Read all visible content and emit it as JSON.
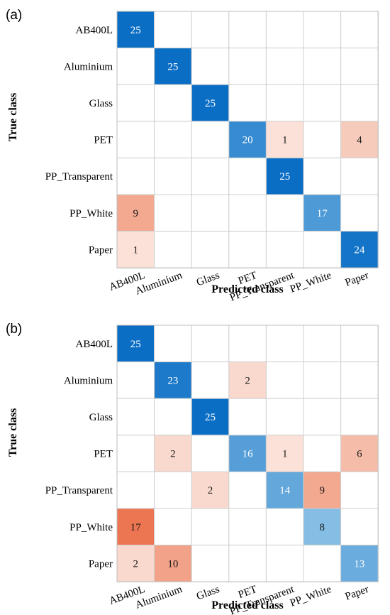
{
  "chart_data": [
    {
      "type": "heatmap",
      "panel_label": "(a)",
      "xlabel": "Predicted class",
      "ylabel": "True class",
      "row_labels": [
        "AB400L",
        "Aluminium",
        "Glass",
        "PET",
        "PP_Transparent",
        "PP_White",
        "Paper"
      ],
      "col_labels": [
        "AB400L",
        "Aluminium",
        "Glass",
        "PET",
        "PP_Transparent",
        "PP_White",
        "Paper"
      ],
      "matrix": [
        [
          25,
          0,
          0,
          0,
          0,
          0,
          0
        ],
        [
          0,
          25,
          0,
          0,
          0,
          0,
          0
        ],
        [
          0,
          0,
          25,
          0,
          0,
          0,
          0
        ],
        [
          0,
          0,
          0,
          20,
          1,
          0,
          4
        ],
        [
          0,
          0,
          0,
          0,
          25,
          0,
          0
        ],
        [
          9,
          0,
          0,
          0,
          0,
          17,
          0
        ],
        [
          1,
          0,
          0,
          0,
          0,
          0,
          24
        ]
      ],
      "grid": true,
      "colors": {
        "diagonal": "#0b6ec5",
        "off_diagonal": "#e8643a",
        "grid": "#cfcfcf"
      }
    },
    {
      "type": "heatmap",
      "panel_label": "(b)",
      "xlabel": "Predicted class",
      "ylabel": "True class",
      "row_labels": [
        "AB400L",
        "Aluminium",
        "Glass",
        "PET",
        "PP_Transparent",
        "PP_White",
        "Paper"
      ],
      "col_labels": [
        "AB400L",
        "Aluminium",
        "Glass",
        "PET",
        "PP_Transparent",
        "PP_White",
        "Paper"
      ],
      "matrix": [
        [
          25,
          0,
          0,
          0,
          0,
          0,
          0
        ],
        [
          0,
          23,
          0,
          2,
          0,
          0,
          0
        ],
        [
          0,
          0,
          25,
          0,
          0,
          0,
          0
        ],
        [
          0,
          2,
          0,
          16,
          1,
          0,
          6
        ],
        [
          0,
          0,
          2,
          0,
          14,
          9,
          0
        ],
        [
          17,
          0,
          0,
          0,
          0,
          8,
          0
        ],
        [
          2,
          10,
          0,
          0,
          0,
          0,
          13
        ]
      ],
      "grid": true,
      "colors": {
        "diagonal": "#0b6ec5",
        "off_diagonal": "#e8643a",
        "grid": "#cfcfcf"
      }
    }
  ]
}
